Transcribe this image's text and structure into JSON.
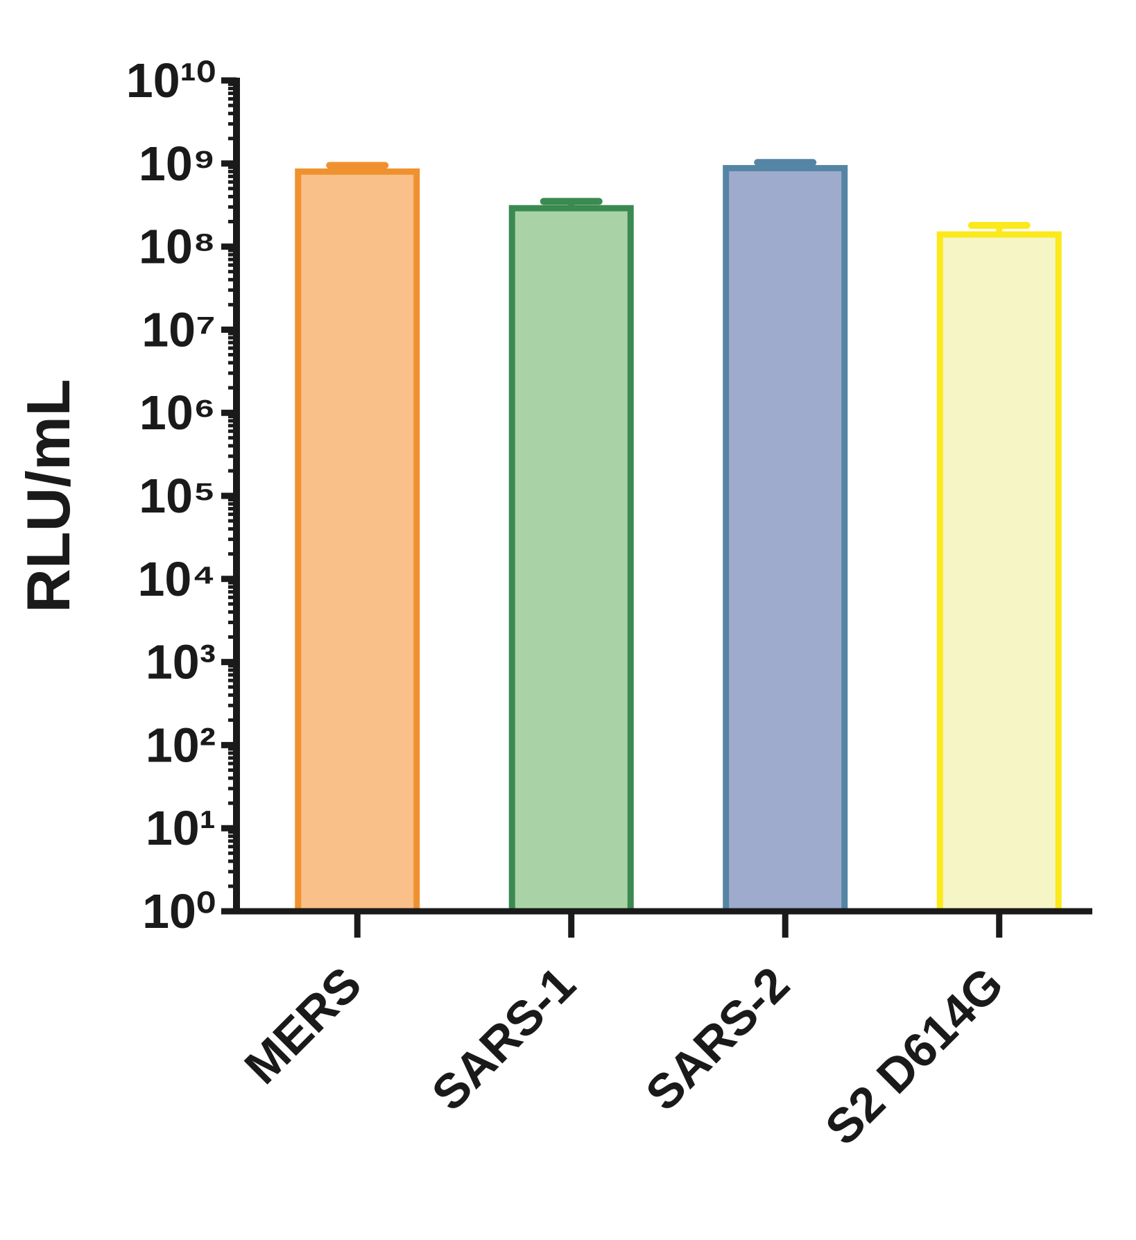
{
  "chart_data": {
    "type": "bar",
    "y_label": "RLU/mL",
    "categories": [
      "MERS",
      "SARS-1",
      "SARS-2",
      "S2 D614G"
    ],
    "values": [
      800000000,
      290000000,
      880000000,
      140000000
    ],
    "errors": [
      150000000,
      60000000,
      150000000,
      40000000
    ],
    "colors": [
      "#f0912f",
      "#3a8a52",
      "#5585a5",
      "#fbe91c"
    ],
    "fill_colors": [
      "#f9c08a",
      "#a9d3a6",
      "#9fabcd",
      "#f5f5c6"
    ],
    "log_scale": true,
    "minor_ticks": true,
    "ylim": [
      1,
      10000000000
    ],
    "yticks": [
      {
        "value": 1,
        "label": "10⁰"
      },
      {
        "value": 10,
        "label": "10¹"
      },
      {
        "value": 100,
        "label": "10²"
      },
      {
        "value": 1000,
        "label": "10³"
      },
      {
        "value": 10000,
        "label": "10⁴"
      },
      {
        "value": 100000,
        "label": "10⁵"
      },
      {
        "value": 1000000,
        "label": "10⁶"
      },
      {
        "value": 10000000,
        "label": "10⁷"
      },
      {
        "value": 100000000,
        "label": "10⁸"
      },
      {
        "value": 1000000000,
        "label": "10⁹"
      },
      {
        "value": 10000000000,
        "label": "10¹⁰"
      }
    ]
  }
}
